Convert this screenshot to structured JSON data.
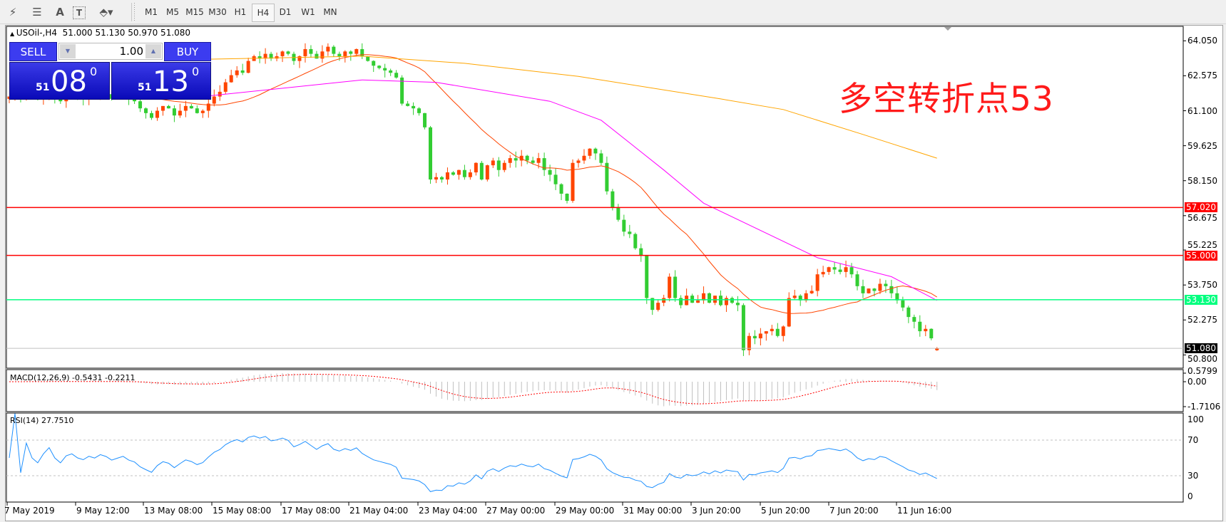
{
  "toolbar": {
    "icons": [
      "elliott-wave-icon",
      "fibonacci-fan-icon",
      "text-icon",
      "text-label-icon",
      "arrows-icon"
    ],
    "text_tool_label": "A",
    "timeframes": [
      "M1",
      "M5",
      "M15",
      "M30",
      "H1",
      "H4",
      "D1",
      "W1",
      "MN"
    ],
    "active_timeframe": "H4"
  },
  "chart_header": "USOil-,H4  51.000 51.130 50.970 51.080",
  "trade_panel": {
    "sell_label": "SELL",
    "buy_label": "BUY",
    "lot": "1.00",
    "sell_price_big": "51",
    "sell_price_main": "08",
    "sell_price_sup": "0",
    "buy_price_big": "51",
    "buy_price_main": "13",
    "buy_price_sup": "0"
  },
  "annotation": "多空转折点53",
  "colors": {
    "bull": "#ff4500",
    "bear": "#32cd32",
    "ma_fast": "#ff4500",
    "ma_mid": "#ff00ff",
    "ma_slow": "#ffa500",
    "level_red": "#ff0000",
    "level_green": "#00ff7f",
    "rsi": "#1e90ff",
    "macd_signal": "#ff0000"
  },
  "chart_data": {
    "type": "candlestick",
    "symbol": "USOil-",
    "timeframe": "H4",
    "last_bar": {
      "open": 51.0,
      "high": 51.13,
      "low": 50.97,
      "close": 51.08
    },
    "price_axis_ticks": [
      "64.050",
      "62.575",
      "61.100",
      "59.625",
      "58.150",
      "56.675",
      "55.225",
      "53.750",
      "52.275",
      "50.800"
    ],
    "price_ylim": [
      50.8,
      64.05
    ],
    "time_axis_labels": [
      "7 May 2019",
      "9 May 12:00",
      "13 May 08:00",
      "15 May 08:00",
      "17 May 08:00",
      "21 May 04:00",
      "23 May 04:00",
      "27 May 00:00",
      "29 May 00:00",
      "31 May 00:00",
      "3 Jun 20:00",
      "5 Jun 20:00",
      "7 Jun 20:00",
      "11 Jun 16:00"
    ],
    "closes": [
      61.7,
      61.8,
      61.6,
      61.9,
      61.7,
      61.6,
      61.8,
      62.0,
      61.7,
      61.5,
      61.8,
      61.9,
      61.7,
      61.6,
      61.8,
      61.7,
      61.9,
      61.8,
      61.6,
      61.7,
      61.8,
      61.6,
      61.5,
      61.2,
      61.0,
      60.8,
      61.1,
      61.3,
      61.2,
      60.9,
      61.1,
      61.3,
      61.2,
      61.0,
      61.1,
      61.4,
      61.7,
      61.9,
      62.3,
      62.6,
      62.8,
      62.7,
      63.2,
      63.4,
      63.3,
      63.5,
      63.3,
      63.4,
      63.6,
      63.5,
      63.2,
      63.4,
      63.7,
      63.5,
      63.3,
      63.6,
      63.8,
      63.5,
      63.4,
      63.6,
      63.5,
      63.7,
      63.4,
      63.2,
      63.0,
      62.9,
      62.8,
      62.7,
      62.5,
      61.4,
      61.3,
      61.2,
      61.0,
      60.4,
      58.2,
      58.3,
      58.2,
      58.5,
      58.4,
      58.6,
      58.3,
      58.5,
      58.9,
      58.2,
      58.8,
      59.0,
      58.6,
      58.9,
      59.1,
      59.0,
      59.2,
      59.0,
      58.9,
      59.1,
      58.6,
      58.4,
      58.0,
      57.6,
      57.3,
      58.9,
      59.0,
      59.2,
      59.5,
      59.3,
      58.9,
      57.7,
      57.0,
      56.5,
      56.0,
      55.9,
      55.3,
      55.0,
      53.2,
      52.7,
      53.0,
      53.2,
      54.1,
      53.2,
      52.9,
      53.3,
      53.0,
      53.1,
      53.4,
      53.0,
      53.3,
      52.9,
      53.2,
      53.0,
      52.9,
      51.0,
      51.6,
      51.5,
      51.7,
      51.8,
      51.9,
      51.6,
      52.0,
      53.2,
      53.3,
      53.1,
      53.4,
      53.5,
      54.2,
      54.3,
      54.5,
      54.4,
      54.3,
      54.5,
      54.2,
      53.7,
      53.4,
      53.6,
      53.5,
      53.8,
      53.7,
      53.4,
      53.1,
      52.8,
      52.4,
      52.2,
      51.8,
      51.9,
      51.5,
      51.08
    ],
    "ma_slow_points": [
      {
        "bar": 30,
        "value": 63.25
      },
      {
        "bar": 62,
        "value": 63.4
      },
      {
        "bar": 80,
        "value": 63.1
      },
      {
        "bar": 100,
        "value": 62.55
      },
      {
        "bar": 125,
        "value": 61.6
      },
      {
        "bar": 136,
        "value": 61.15
      },
      {
        "bar": 150,
        "value": 60.1
      },
      {
        "bar": 163,
        "value": 59.1
      }
    ],
    "ma_mid_points": [
      {
        "bar": 30,
        "value": 61.6
      },
      {
        "bar": 50,
        "value": 62.1
      },
      {
        "bar": 62,
        "value": 62.4
      },
      {
        "bar": 75,
        "value": 62.3
      },
      {
        "bar": 95,
        "value": 61.5
      },
      {
        "bar": 104,
        "value": 60.7
      },
      {
        "bar": 115,
        "value": 58.6
      },
      {
        "bar": 122,
        "value": 57.2
      },
      {
        "bar": 142,
        "value": 54.9
      },
      {
        "bar": 155,
        "value": 54.1
      },
      {
        "bar": 163,
        "value": 53.1
      }
    ],
    "ma_fast_period": 21,
    "levels": [
      {
        "value": "57.020",
        "color": "#ff0000"
      },
      {
        "value": "55.000",
        "color": "#ff0000"
      },
      {
        "value": "53.130",
        "color": "#00ff7f"
      }
    ],
    "current_price": "51.080",
    "macd": {
      "label": "MACD(12,26,9) -0.5431 -0.2211",
      "ticks": [
        "0.5799",
        "0.00",
        "-1.7106"
      ],
      "range": [
        -1.7106,
        0.5799
      ]
    },
    "rsi": {
      "label": "RSI(14) 27.7510",
      "ticks": [
        "100",
        "70",
        "30",
        "0"
      ],
      "levels": [
        70,
        30
      ]
    }
  }
}
